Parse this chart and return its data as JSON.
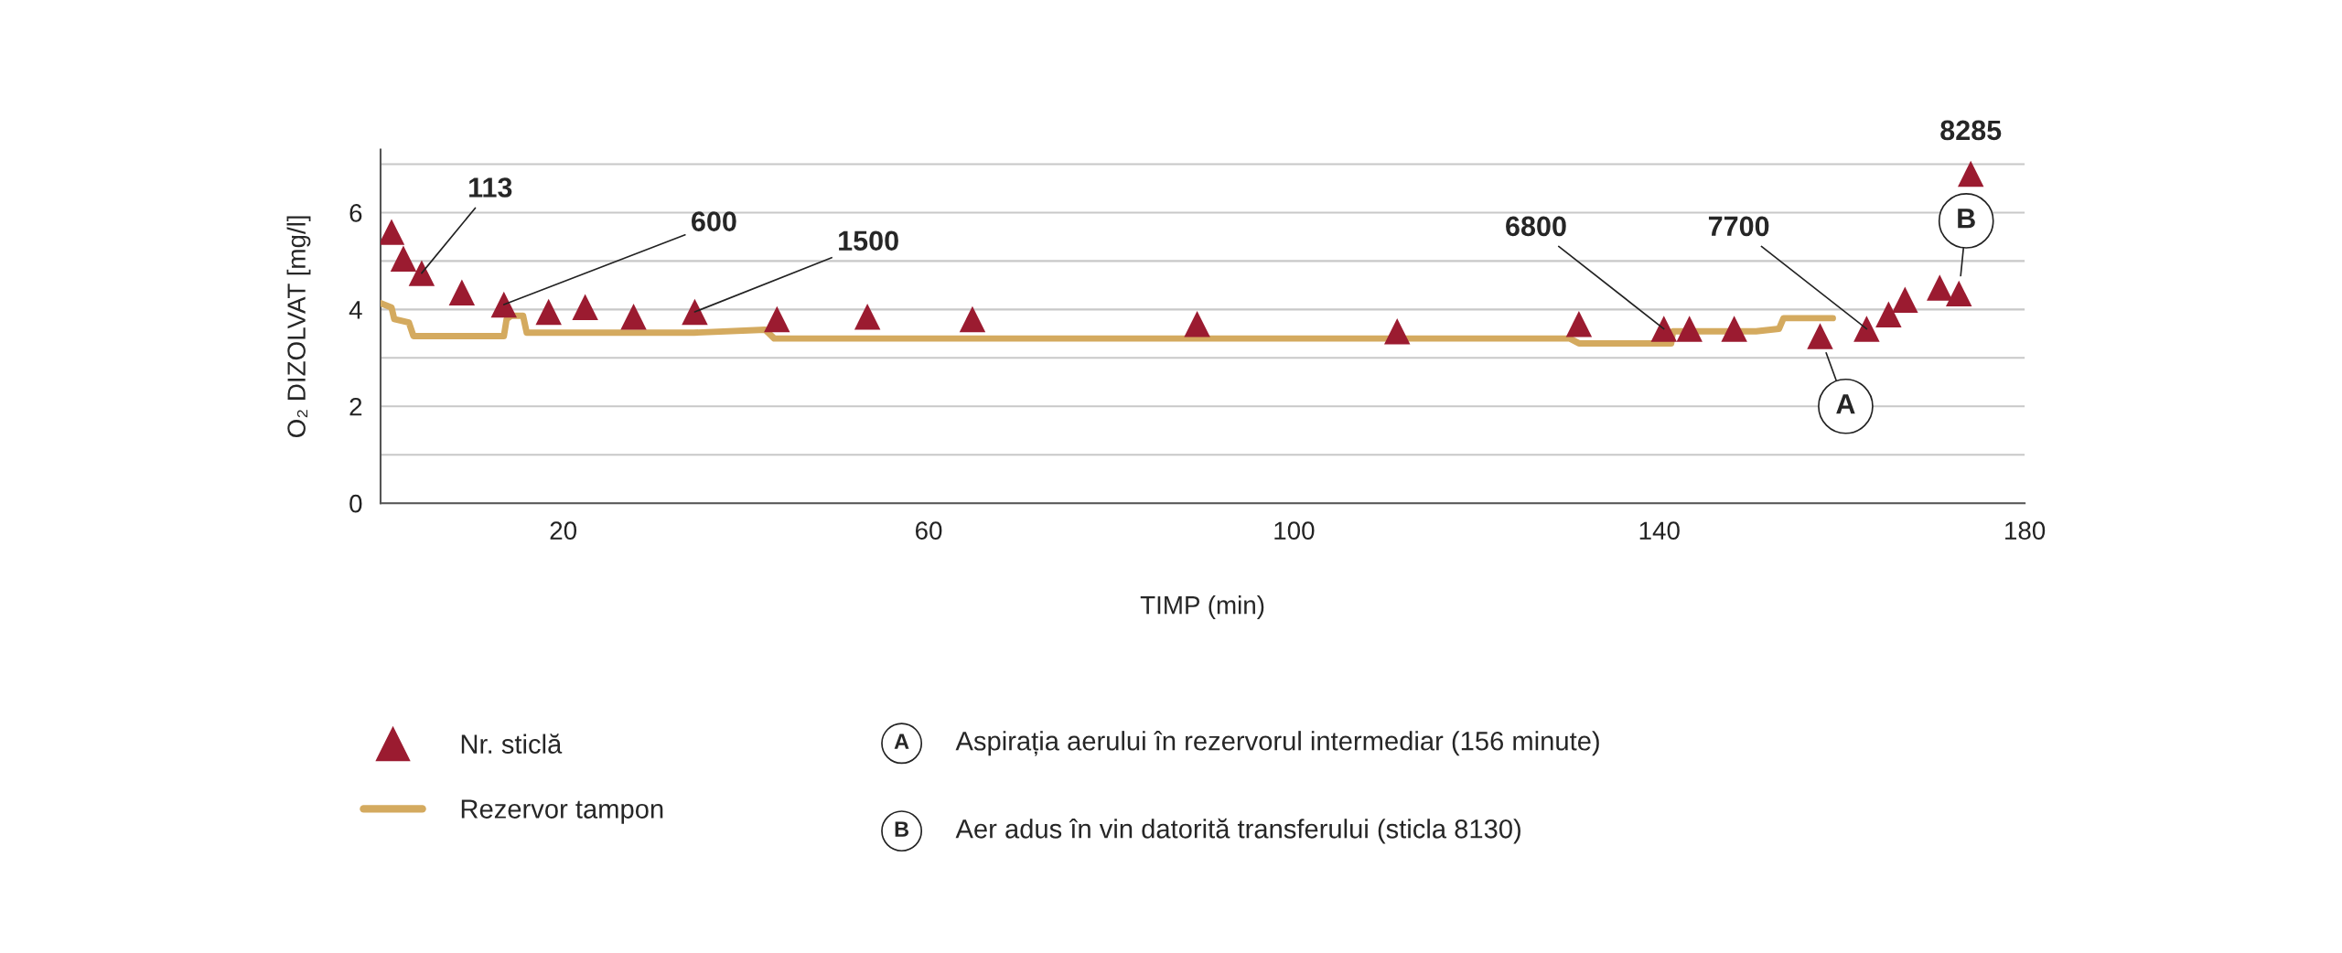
{
  "chart_data": {
    "type": "scatter",
    "xlabel": "TIMP (min)",
    "ylabel": "O₂ DIZOLVAT [mg/l]",
    "xlim": [
      0,
      180
    ],
    "xticks": [
      20,
      60,
      100,
      140,
      180
    ],
    "ylim": [
      0,
      7.3
    ],
    "yticks": [
      0,
      {
        "value": 1,
        "label": null
      },
      2,
      {
        "value": 3,
        "label": null
      },
      4,
      {
        "value": 5,
        "label": null
      },
      6,
      {
        "value": 7,
        "label": null
      }
    ],
    "grid": "y",
    "legend": "bottom",
    "marker": "triangle",
    "series": [
      {
        "name": "Nr. sticlă",
        "color": "#9b1b30",
        "x": [
          1.2,
          2.5,
          4.5,
          8.9,
          13.5,
          18.4,
          22.4,
          27.7,
          34.4,
          43.4,
          53.3,
          64.8,
          89.4,
          111.3,
          131.2,
          140.5,
          143.3,
          148.2,
          157.6,
          162.7,
          165.1,
          166.9,
          170.7,
          172.8,
          174.1
        ],
        "values": [
          5.6,
          5.05,
          4.75,
          4.35,
          4.1,
          3.95,
          4.05,
          3.85,
          3.95,
          3.8,
          3.85,
          3.8,
          3.7,
          3.55,
          3.7,
          3.6,
          3.6,
          3.6,
          3.45,
          3.6,
          3.9,
          4.2,
          4.45,
          4.33,
          6.8
        ]
      },
      {
        "name": "Rezervor tampon",
        "type": "line",
        "color": "#d4aa5f",
        "marker": "none",
        "x": [
          0,
          1.2,
          1.5,
          3.1,
          3.6,
          13.5,
          13.8,
          14.3,
          15.6,
          16,
          34.3,
          42.1,
          43.1,
          130.2,
          131.2,
          141.3,
          141.5,
          150.6,
          153.1,
          153.6,
          159
        ],
        "values": [
          4.13,
          4.04,
          3.8,
          3.73,
          3.45,
          3.45,
          3.8,
          3.87,
          3.87,
          3.52,
          3.52,
          3.58,
          3.4,
          3.4,
          3.3,
          3.3,
          3.55,
          3.55,
          3.6,
          3.82,
          3.82
        ]
      }
    ],
    "annotations": [
      {
        "text": "113",
        "x": 4.5,
        "y": 4.75
      },
      {
        "text": "600",
        "x": 13.5,
        "y": 4.1
      },
      {
        "text": "1500",
        "x": 34.4,
        "y": 3.95
      },
      {
        "text": "6800",
        "x": 140.5,
        "y": 3.6
      },
      {
        "text": "7700",
        "x": 162.7,
        "y": 3.6
      },
      {
        "text": "8285",
        "x": 174.1,
        "y": 6.8
      },
      {
        "text": "A",
        "x": 157.6,
        "y": 3.45
      },
      {
        "text": "B",
        "x": 172.8,
        "y": 4.33
      },
      "Aspirația aerului în rezervorul intermediar (156 minute)",
      "Aer adus în vin datorită transferului (sticla 8130)"
    ]
  }
}
